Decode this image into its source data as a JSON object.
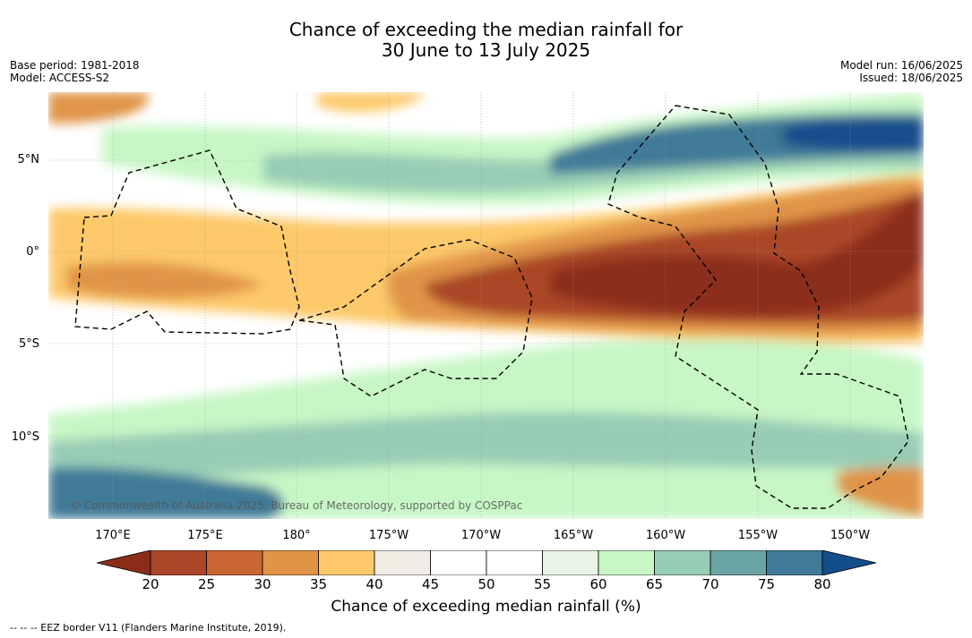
{
  "header": {
    "title_line1": "Chance of exceeding the median rainfall for",
    "title_line2": "30 June to 13 July 2025",
    "base_period": "Base period: 1981-2018",
    "model": "Model: ACCESS-S2",
    "model_run": "Model run: 16/06/2025",
    "issued": "Issued: 18/06/2025"
  },
  "map": {
    "lat_labels": [
      "5°N",
      "0°",
      "5°S",
      "10°S"
    ],
    "lon_labels": [
      "170°E",
      "175°E",
      "180°",
      "175°W",
      "170°W",
      "165°W",
      "160°W",
      "155°W",
      "150°W"
    ],
    "copyright": "© Commonwealth of Australia 2025, Bureau of Meteorology, supported by COSPPac"
  },
  "colorbar": {
    "ticks": [
      "20",
      "25",
      "30",
      "35",
      "40",
      "45",
      "50",
      "55",
      "60",
      "65",
      "70",
      "75",
      "80"
    ],
    "colors": [
      "#8c2d1a",
      "#ab4628",
      "#c96532",
      "#e09446",
      "#fdc96a",
      "#f1ebe5",
      "#ffffff",
      "#ffffff",
      "#e9f6e7",
      "#c8f7c6",
      "#98cdb5",
      "#6ba4a4",
      "#3f7a98",
      "#134e8b"
    ],
    "label": "Chance of exceeding median rainfall (%)"
  },
  "footer": {
    "legend": "--  --  -- EEZ border V11 (Flanders Marine Institute, 2019)."
  }
}
